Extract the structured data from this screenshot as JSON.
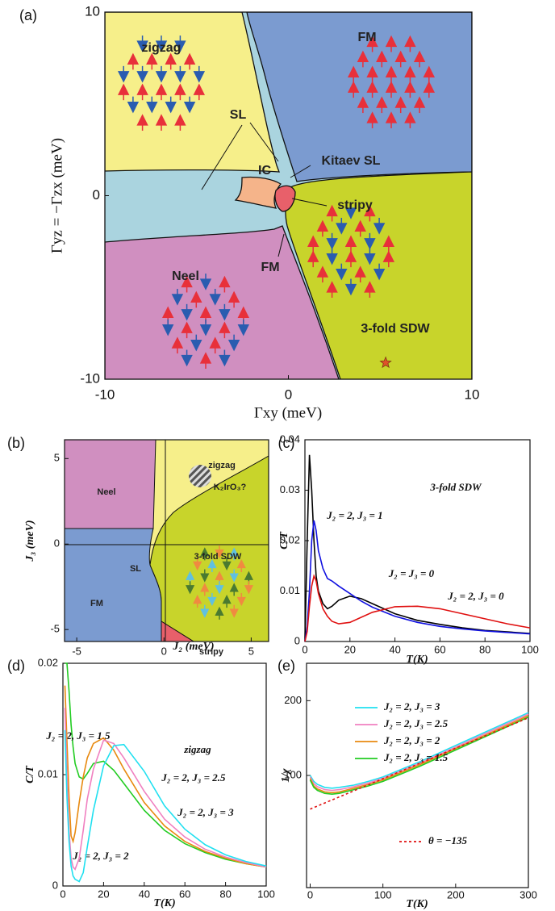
{
  "panel_labels": [
    "(a)",
    "(b)",
    "(c)",
    "(d)",
    "(e)"
  ],
  "chart_data": [
    {
      "type": "phase-diagram",
      "xlabel": "Γxy (meV)",
      "ylabel": "Γyz = −Γzx (meV)",
      "xlim": [
        -10,
        10
      ],
      "ylim": [
        -10,
        10
      ],
      "xticks": [
        -10,
        0,
        10
      ],
      "yticks": [
        -10,
        0,
        10
      ],
      "region_labels": [
        "zigzag",
        "FM",
        "SL",
        "IC",
        "Kitaev SL",
        "stripy",
        "Neel",
        "FM",
        "3-fold SDW"
      ],
      "points": [
        {
          "x": 5.3,
          "y": -9.1,
          "color": "#e0522a"
        }
      ]
    },
    {
      "type": "phase-diagram",
      "xlabel": "J₂ (meV)",
      "ylabel": "J₃ (meV)",
      "xlim": [
        -5.7,
        6
      ],
      "ylim": [
        -5.7,
        6.1
      ],
      "xticks": [
        -5,
        0,
        5
      ],
      "yticks": [
        -5,
        0,
        5
      ],
      "region_labels": [
        "zigzag",
        "Neel",
        "K₂IrO₃?",
        "3-fold SDW",
        "SL",
        "FM",
        "stripy"
      ],
      "points": []
    },
    {
      "type": "line",
      "xlabel": "T(K)",
      "ylabel": "C/T",
      "annotation": "3-fold SDW",
      "xlim": [
        0,
        100
      ],
      "ylim": [
        0,
        0.04
      ],
      "xticks": [
        0,
        20,
        40,
        60,
        80,
        100
      ],
      "yticks": [
        0,
        0.01,
        0.02,
        0.03,
        0.04
      ],
      "x": [
        0,
        1,
        2,
        3,
        4,
        5,
        6,
        8,
        10,
        12,
        15,
        20,
        25,
        30,
        40,
        50,
        60,
        70,
        80,
        90,
        100
      ],
      "series": [
        {
          "name": "J₂ = J₃ = 0",
          "color": "#000000",
          "values": [
            0,
            0.02,
            0.037,
            0.03,
            0.02,
            0.013,
            0.01,
            0.0075,
            0.0065,
            0.007,
            0.0082,
            0.009,
            0.0085,
            0.0075,
            0.0055,
            0.0042,
            0.0034,
            0.0027,
            0.0022,
            0.0019,
            0.0016
          ]
        },
        {
          "name": "J₂ = 2, J₃ = 1",
          "color": "#1010e0",
          "values": [
            0,
            0.003,
            0.01,
            0.02,
            0.024,
            0.022,
            0.018,
            0.0145,
            0.0125,
            0.012,
            0.011,
            0.0095,
            0.008,
            0.0068,
            0.005,
            0.0038,
            0.003,
            0.0025,
            0.0021,
            0.0018,
            0.0015
          ]
        },
        {
          "name": "J₂ = 2, J₃ = 0",
          "color": "#e01010",
          "values": [
            0,
            0.002,
            0.007,
            0.011,
            0.013,
            0.012,
            0.0095,
            0.0065,
            0.005,
            0.004,
            0.0035,
            0.0038,
            0.0048,
            0.0058,
            0.0069,
            0.007,
            0.0065,
            0.0055,
            0.0045,
            0.0035,
            0.0027
          ]
        }
      ]
    },
    {
      "type": "line",
      "xlabel": "T(K)",
      "ylabel": "C/T",
      "annotation": "zigzag",
      "xlim": [
        0,
        100
      ],
      "ylim": [
        0,
        0.02
      ],
      "xticks": [
        0,
        20,
        40,
        60,
        80,
        100
      ],
      "yticks": [
        0,
        0.01,
        0.02
      ],
      "x": [
        1,
        2,
        3,
        4,
        5,
        6,
        8,
        10,
        12,
        15,
        20,
        25,
        30,
        40,
        50,
        60,
        70,
        80,
        90,
        100
      ],
      "series": [
        {
          "name": "J₂ = 2, J₃ = 1.5",
          "color": "#22cc22",
          "values": [
            0.02,
            0.02,
            0.0175,
            0.0145,
            0.0125,
            0.011,
            0.0098,
            0.0096,
            0.0101,
            0.011,
            0.0112,
            0.0104,
            0.0092,
            0.0068,
            0.005,
            0.0038,
            0.003,
            0.0024,
            0.002,
            0.0017
          ]
        },
        {
          "name": "J₂ = 2, J₃ = 2",
          "color": "#e88a10",
          "values": [
            0.018,
            0.013,
            0.008,
            0.0045,
            0.004,
            0.0048,
            0.0075,
            0.0098,
            0.0115,
            0.0128,
            0.0133,
            0.0122,
            0.0105,
            0.0075,
            0.0054,
            0.004,
            0.0031,
            0.0025,
            0.002,
            0.0017
          ]
        },
        {
          "name": "J₂ = 2, J₃ = 2.5",
          "color": "#f080c0",
          "values": [
            0.016,
            0.01,
            0.005,
            0.0025,
            0.0017,
            0.0015,
            0.0025,
            0.005,
            0.0078,
            0.0105,
            0.0131,
            0.0128,
            0.0115,
            0.0085,
            0.006,
            0.0044,
            0.0033,
            0.0026,
            0.0021,
            0.0017
          ]
        },
        {
          "name": "J₂ = 2, J₃ = 3",
          "color": "#20e0f0",
          "values": [
            0.014,
            0.008,
            0.004,
            0.0018,
            0.0009,
            0.0006,
            0.0004,
            0.0012,
            0.0035,
            0.0068,
            0.0108,
            0.0126,
            0.0127,
            0.0103,
            0.0072,
            0.0051,
            0.0037,
            0.0028,
            0.0022,
            0.0018
          ]
        }
      ]
    },
    {
      "type": "line",
      "xlabel": "T(K)",
      "ylabel": "1/χ",
      "legend": "upper left",
      "xlim": [
        -5,
        300
      ],
      "ylim": [
        -50,
        250
      ],
      "xticks": [
        0,
        100,
        200,
        300
      ],
      "yticks": [
        100,
        200
      ],
      "x": [
        0,
        5,
        10,
        20,
        30,
        40,
        60,
        80,
        100,
        150,
        200,
        250,
        300
      ],
      "series": [
        {
          "name": "J₂ = 2, J₃ = 3",
          "color": "#20e0f0",
          "values": [
            100,
            92,
            88,
            84,
            83,
            84,
            87,
            92,
            98,
            118,
            140,
            162,
            184
          ]
        },
        {
          "name": "J₂ = 2, J₃ = 2.5",
          "color": "#f080c0",
          "values": [
            98,
            89,
            85,
            81,
            80,
            81,
            85,
            90,
            96,
            116,
            138,
            160,
            182
          ]
        },
        {
          "name": "J₂ = 2, J₃ = 2",
          "color": "#e88a10",
          "values": [
            96,
            86,
            82,
            78,
            77,
            78,
            83,
            88,
            94,
            114,
            136,
            158,
            180
          ]
        },
        {
          "name": "J₂ = 2, J₃ = 1.5",
          "color": "#22cc22",
          "values": [
            94,
            84,
            80,
            76,
            75,
            76,
            81,
            86,
            92,
            112,
            134,
            156,
            178
          ]
        },
        {
          "name": "θ = −135",
          "color": "#e01010",
          "dashed": true,
          "x": [
            0,
            300
          ],
          "values": [
            55,
            177
          ]
        }
      ]
    }
  ]
}
